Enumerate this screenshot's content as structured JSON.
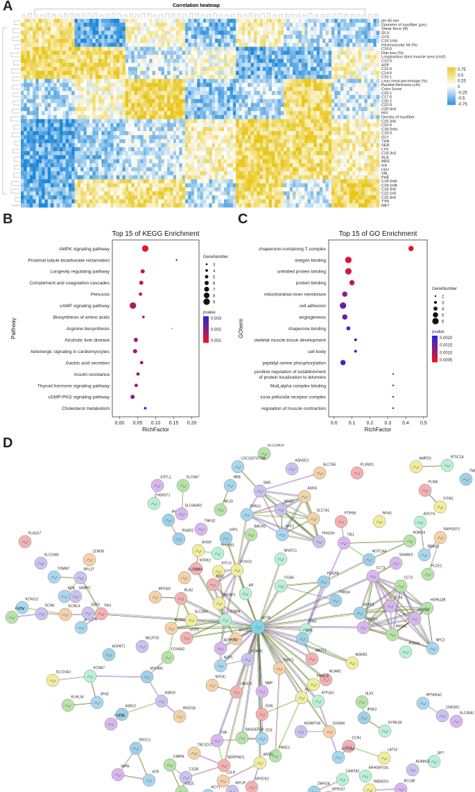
{
  "panels": {
    "a": "A",
    "b": "B",
    "c": "C",
    "d": "D"
  },
  "heatmap": {
    "title": "Correlation heatmap",
    "rows": [
      "pH 45 min",
      "Diameter of myofiber (μm)",
      "Shear force (N)",
      "GLU",
      "CYS",
      "C18:1n9c",
      "Intramuscular fat (%)",
      "C16:0",
      "Drip loss (%)",
      "Longissimus dorsi muscle area (cm2)",
      "C10:0",
      "ASP",
      "C12:0",
      "C14:0",
      "C16:1",
      "Lean meat percentage (%)",
      "Backfat thickness (cm)",
      "Color Score",
      "C20:1",
      "C17:0",
      "C20:2",
      "C22:0",
      "C20:3n3",
      "HIS",
      "Density of myofiber",
      "C20:3n6",
      "C22:6",
      "C18:2n6c",
      "C18:0",
      "GLY",
      "THR",
      "SER",
      "LYS",
      "C18:3n3",
      "ALA",
      "ARG",
      "ILE",
      "LEU",
      "VAL",
      "PHE",
      "C18:2n6t",
      "C18:1n9t",
      "C18:3n6",
      "C22:1n9",
      "C20:4n6",
      "TYR",
      "MET"
    ],
    "legend_ticks": [
      "0.75",
      "0.5",
      "0.25",
      "0",
      "-0.25",
      "-0.5",
      "-0.75"
    ],
    "colors": {
      "neg": "#1e88d8",
      "mid": "#ffffff",
      "pos": "#e8c61a"
    }
  },
  "chart_data": [
    {
      "type": "scatter",
      "title": "Top 15 of KEGG Enrichment",
      "xlabel": "RichFactor",
      "ylabel": "Pathway",
      "xlim": [
        -0.02,
        0.22
      ],
      "xticks": [
        "0.00",
        "0.05",
        "0.10",
        "0.15",
        "0.20"
      ],
      "categories": [
        "AMPK signaling pathway",
        "Proximal tubule bicarbonate reclamation",
        "Longevity regulating pathway",
        "Complement and coagulation cascades",
        "Pertussis",
        "cAMP signaling pathway",
        "Biosynthesis of amino acids",
        "Arginine biosynthesis",
        "Alcoholic liver disease",
        "Adrenergic signaling in cardiomyocytes",
        "Gastric acid secretion",
        "Insulin resistance",
        "Thyroid hormone signaling pathway",
        "cGMP-PKG signaling pathway",
        "Cholesterol metabolism"
      ],
      "rich_factor": [
        0.071,
        0.158,
        0.064,
        0.06,
        0.058,
        0.037,
        0.066,
        0.145,
        0.045,
        0.043,
        0.061,
        0.051,
        0.046,
        0.036,
        0.071
      ],
      "gene_number": [
        9,
        3,
        6,
        6,
        5,
        9,
        4,
        2,
        6,
        6,
        5,
        5,
        5,
        6,
        4
      ],
      "pvalue": [
        0.0002,
        0.0003,
        0.0007,
        0.0008,
        0.0009,
        0.0013,
        0.0012,
        0.001,
        0.0016,
        0.0017,
        0.0014,
        0.0015,
        0.0017,
        0.0022,
        0.0035
      ],
      "size_legend_title": "GeneNumber",
      "size_legend": [
        3,
        4,
        5,
        6,
        7,
        8,
        9
      ],
      "color_legend_title": "pvalue",
      "color_legend": [
        "0.003",
        "0.002",
        "0.001"
      ]
    },
    {
      "type": "scatter",
      "title": "Top 15 of GO Enrichment",
      "xlabel": "RichFactor",
      "ylabel": "GOterm",
      "xlim": [
        -0.03,
        0.52
      ],
      "xticks": [
        "0.0",
        "0.1",
        "0.2",
        "0.3",
        "0.4",
        "0.5"
      ],
      "categories": [
        "chaperonin-containing T-complex",
        "integrin binding",
        "unfolded protein binding",
        "protein binding",
        "mitochondrial inner membrane",
        "cell adhesion",
        "angiogenesis",
        "chaperone binding",
        "skeletal muscle tissue development",
        "cell body",
        "peptidyl-serine phosphorylation",
        "positive regulation of establishment\nof protein localization to telomere",
        "MutLalpha complex binding",
        "zona pellucida receptor complex",
        "regulation of muscle contraction"
      ],
      "rich_factor": [
        0.43,
        0.08,
        0.08,
        0.1,
        0.06,
        0.05,
        0.06,
        0.08,
        0.12,
        0.12,
        0.05,
        0.33,
        0.33,
        0.33,
        0.33
      ],
      "gene_number": [
        5,
        6,
        6,
        5,
        5,
        6,
        5,
        4,
        3,
        3,
        5,
        2,
        2,
        2,
        2
      ],
      "pvalue": [
        0.0001,
        0.0002,
        0.0003,
        0.0005,
        0.0012,
        0.0017,
        0.0016,
        0.0019,
        0.0021,
        0.0022,
        0.0021,
        0.0022,
        0.0023,
        0.0023,
        0.0023
      ],
      "size_legend_title": "GeneNumber",
      "size_legend": [
        2,
        3,
        4,
        5,
        6
      ],
      "color_legend_title": "pvalue",
      "color_legend": [
        "0.0020",
        "0.0015",
        "0.0010",
        "0.0005"
      ]
    }
  ],
  "network": {
    "nodes": [
      "SLC22A16",
      "LOC100737768",
      "ASNSD1",
      "SLC7A5",
      "PLXND1",
      "AMPD3",
      "NT5C1A",
      "TMEM159",
      "EXTL1",
      "SLC9A7",
      "HBB",
      "SMS",
      "ASNS",
      "PLIN5",
      "FITM1",
      "HS6ST1",
      "IFI6",
      "SLC9A3R2",
      "NEU3",
      "EPAS1",
      "ARG2",
      "SLC7A1",
      "PTPRB",
      "RF4G",
      "ADCY4",
      "RSAD2",
      "TNKS2",
      "BACH2",
      "AFF3",
      "PHGDH",
      "RAPGEF3",
      "PLA2G7",
      "GHSR",
      "PFKFB3",
      "LRP1",
      "TIE1",
      "ROBO4",
      "RRAS2",
      "SLC16A5",
      "LENG8",
      "NTRK2",
      "KITLG",
      "NFATC1",
      "NOTCH4",
      "SHANK3",
      "PLCE1",
      "TOMM7",
      "RPL37",
      "SLC30A4",
      "IRS2",
      "FOXO1",
      "AR",
      "PDGFB",
      "CCT3",
      "CCT2",
      "ADA",
      "SNRPC",
      "MFGE8",
      "RLN2",
      "SREBF1",
      "ITGA5",
      "THBS4",
      "CCT8",
      "HSPA12B",
      "KCNJ12",
      "SCNA",
      "KCNC4",
      "FAU",
      "SLC2A4",
      "CEBPB",
      "HSPD1",
      "HSPH1",
      "FNTB",
      "SRL27A",
      "EEF5",
      "ACADL",
      "UCP3",
      "ACTB",
      "ENG",
      "TXN",
      "HSPE1",
      "AHSA1",
      "NFC2",
      "NELFCD",
      "MYOD1",
      "ABCC1",
      "MSRB1",
      "PTOV1",
      "AGPAT1",
      "ADIPOQ",
      "COX6A2",
      "AQP1",
      "VCAM1",
      "TNNT1",
      "NCAM1",
      "SLC16A3",
      "KCNA7",
      "MYOM3",
      "MBP",
      "ULK1",
      "RPS6KA2",
      "CNKSR1",
      "MYOC",
      "LINGO1",
      "ACTA1",
      "ATP1A1",
      "IP6K3",
      "SLC40A1",
      "KLHL34",
      "JPH2",
      "ASB10",
      "HIGD1A",
      "GSN",
      "PWKLB",
      "DYRK1B",
      "ASB12",
      "CREBL",
      "RASGEF1B",
      "CD3",
      "ADAMTS8",
      "S100A6",
      "CCN1",
      "LATS2",
      "DPT",
      "ERCC1",
      "C4A",
      "TNNC1",
      "ATP1A4",
      "ADAM15",
      "TBC1D17",
      "SERPING1",
      "APOD",
      "CAMTA2",
      "ZNF628",
      "WRN",
      "C4BPA",
      "ATR",
      "C1QA",
      "LDLR",
      "SPOCK2",
      "TMEM201",
      "ARHGEF10L",
      "GPR157",
      "BCL6B",
      "C1QC",
      "ACY1",
      "MYLIP"
    ]
  }
}
